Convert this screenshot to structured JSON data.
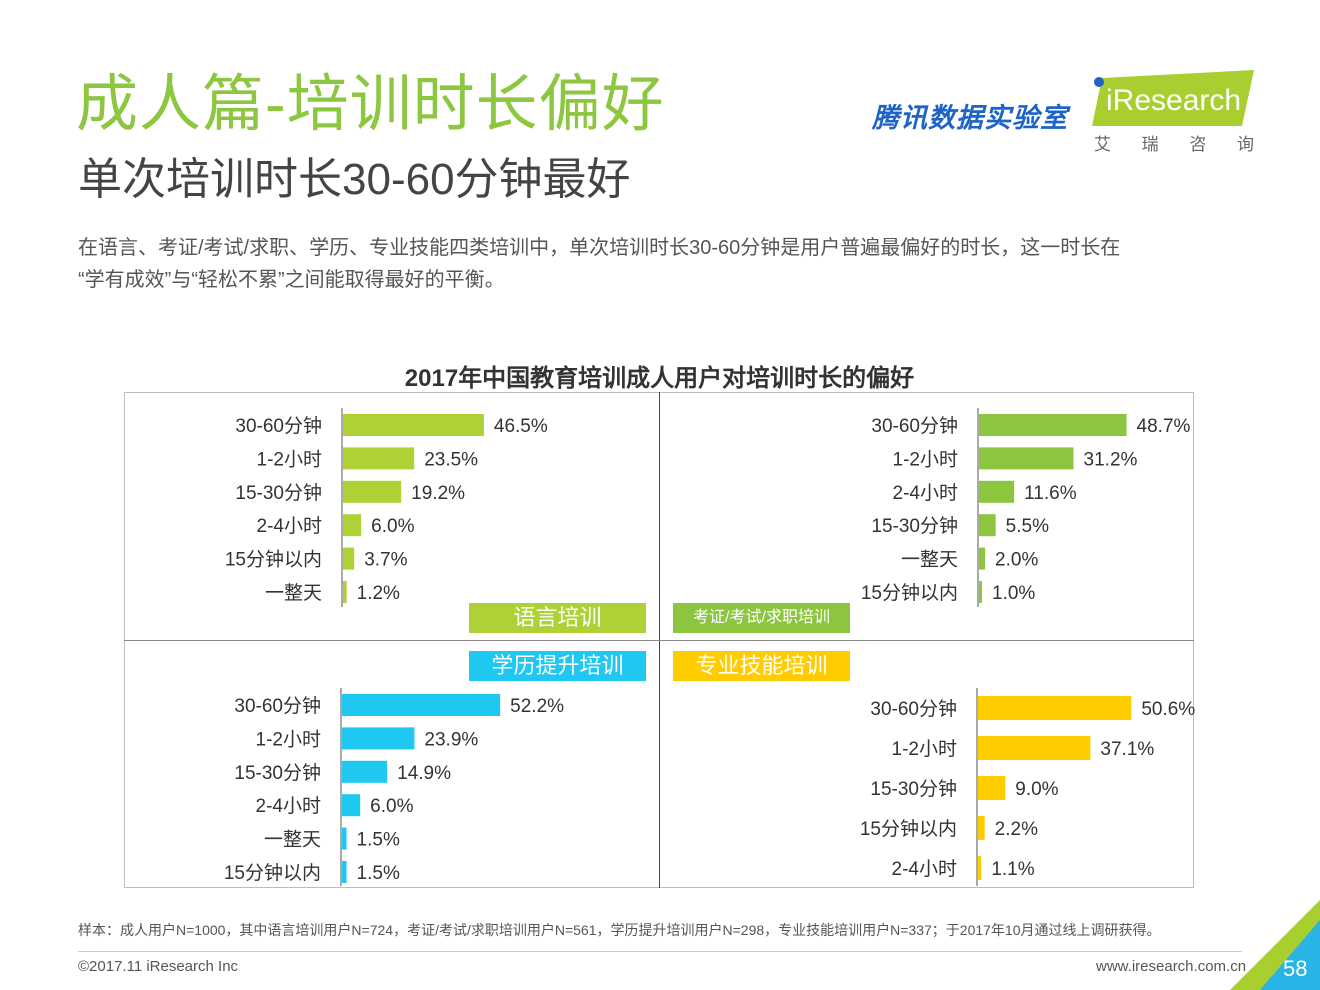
{
  "header": {
    "title": "成人篇-培训时长偏好",
    "subtitle": "单次培训时长30-60分钟最好",
    "intro_line1": "在语言、考证/考试/求职、学历、专业技能四类培训中，单次培训时长30-60分钟是用户普遍最偏好的时长，这一时长在",
    "intro_line2": "“学有成效”与“轻松不累”之间能取得最好的平衡。"
  },
  "logos": {
    "tencent": "腾讯数据实验室",
    "iresearch": "iResearch",
    "iresearch_cn": [
      "艾",
      "瑞",
      "咨",
      "询"
    ]
  },
  "chart_title": "2017年中国教育培训成人用户对培训时长的偏好",
  "chart_data": [
    {
      "type": "bar",
      "orientation": "horizontal",
      "panel": "语言培训",
      "color": "#aed135",
      "categories": [
        "30-60分钟",
        "1-2小时",
        "15-30分钟",
        "2-4小时",
        "15分钟以内",
        "一整天"
      ],
      "values": [
        46.5,
        23.5,
        19.2,
        6.0,
        3.7,
        1.2
      ],
      "labels": [
        "46.5%",
        "23.5%",
        "19.2%",
        "6.0%",
        "3.7%",
        "1.2%"
      ]
    },
    {
      "type": "bar",
      "orientation": "horizontal",
      "panel": "考证/考试/求职培训",
      "color": "#8cc63f",
      "categories": [
        "30-60分钟",
        "1-2小时",
        "2-4小时",
        "15-30分钟",
        "一整天",
        "15分钟以内"
      ],
      "values": [
        48.7,
        31.2,
        11.6,
        5.5,
        2.0,
        1.0
      ],
      "labels": [
        "48.7%",
        "31.2%",
        "11.6%",
        "5.5%",
        "2.0%",
        "1.0%"
      ]
    },
    {
      "type": "bar",
      "orientation": "horizontal",
      "panel": "学历提升培训",
      "color": "#1ec8f0",
      "categories": [
        "30-60分钟",
        "1-2小时",
        "15-30分钟",
        "2-4小时",
        "一整天",
        "15分钟以内"
      ],
      "values": [
        52.2,
        23.9,
        14.9,
        6.0,
        1.5,
        1.5
      ],
      "labels": [
        "52.2%",
        "23.9%",
        "14.9%",
        "6.0%",
        "1.5%",
        "1.5%"
      ]
    },
    {
      "type": "bar",
      "orientation": "horizontal",
      "panel": "专业技能培训",
      "color": "#ffcc00",
      "categories": [
        "30-60分钟",
        "1-2小时",
        "15-30分钟",
        "15分钟以内",
        "2-4小时"
      ],
      "values": [
        50.6,
        37.1,
        9.0,
        2.2,
        1.1
      ],
      "labels": [
        "50.6%",
        "37.1%",
        "9.0%",
        "2.2%",
        "1.1%"
      ]
    }
  ],
  "footer": {
    "note": "样本：成人用户N=1000，其中语言培训用户N=724，考证/考试/求职培训用户N=561，学历提升培训用户N=298，专业技能培训用户N=337；于2017年10月通过线上调研获得。",
    "copyright": "©2017.11 iResearch Inc",
    "website": "www.iresearch.com.cn",
    "page": "58"
  }
}
